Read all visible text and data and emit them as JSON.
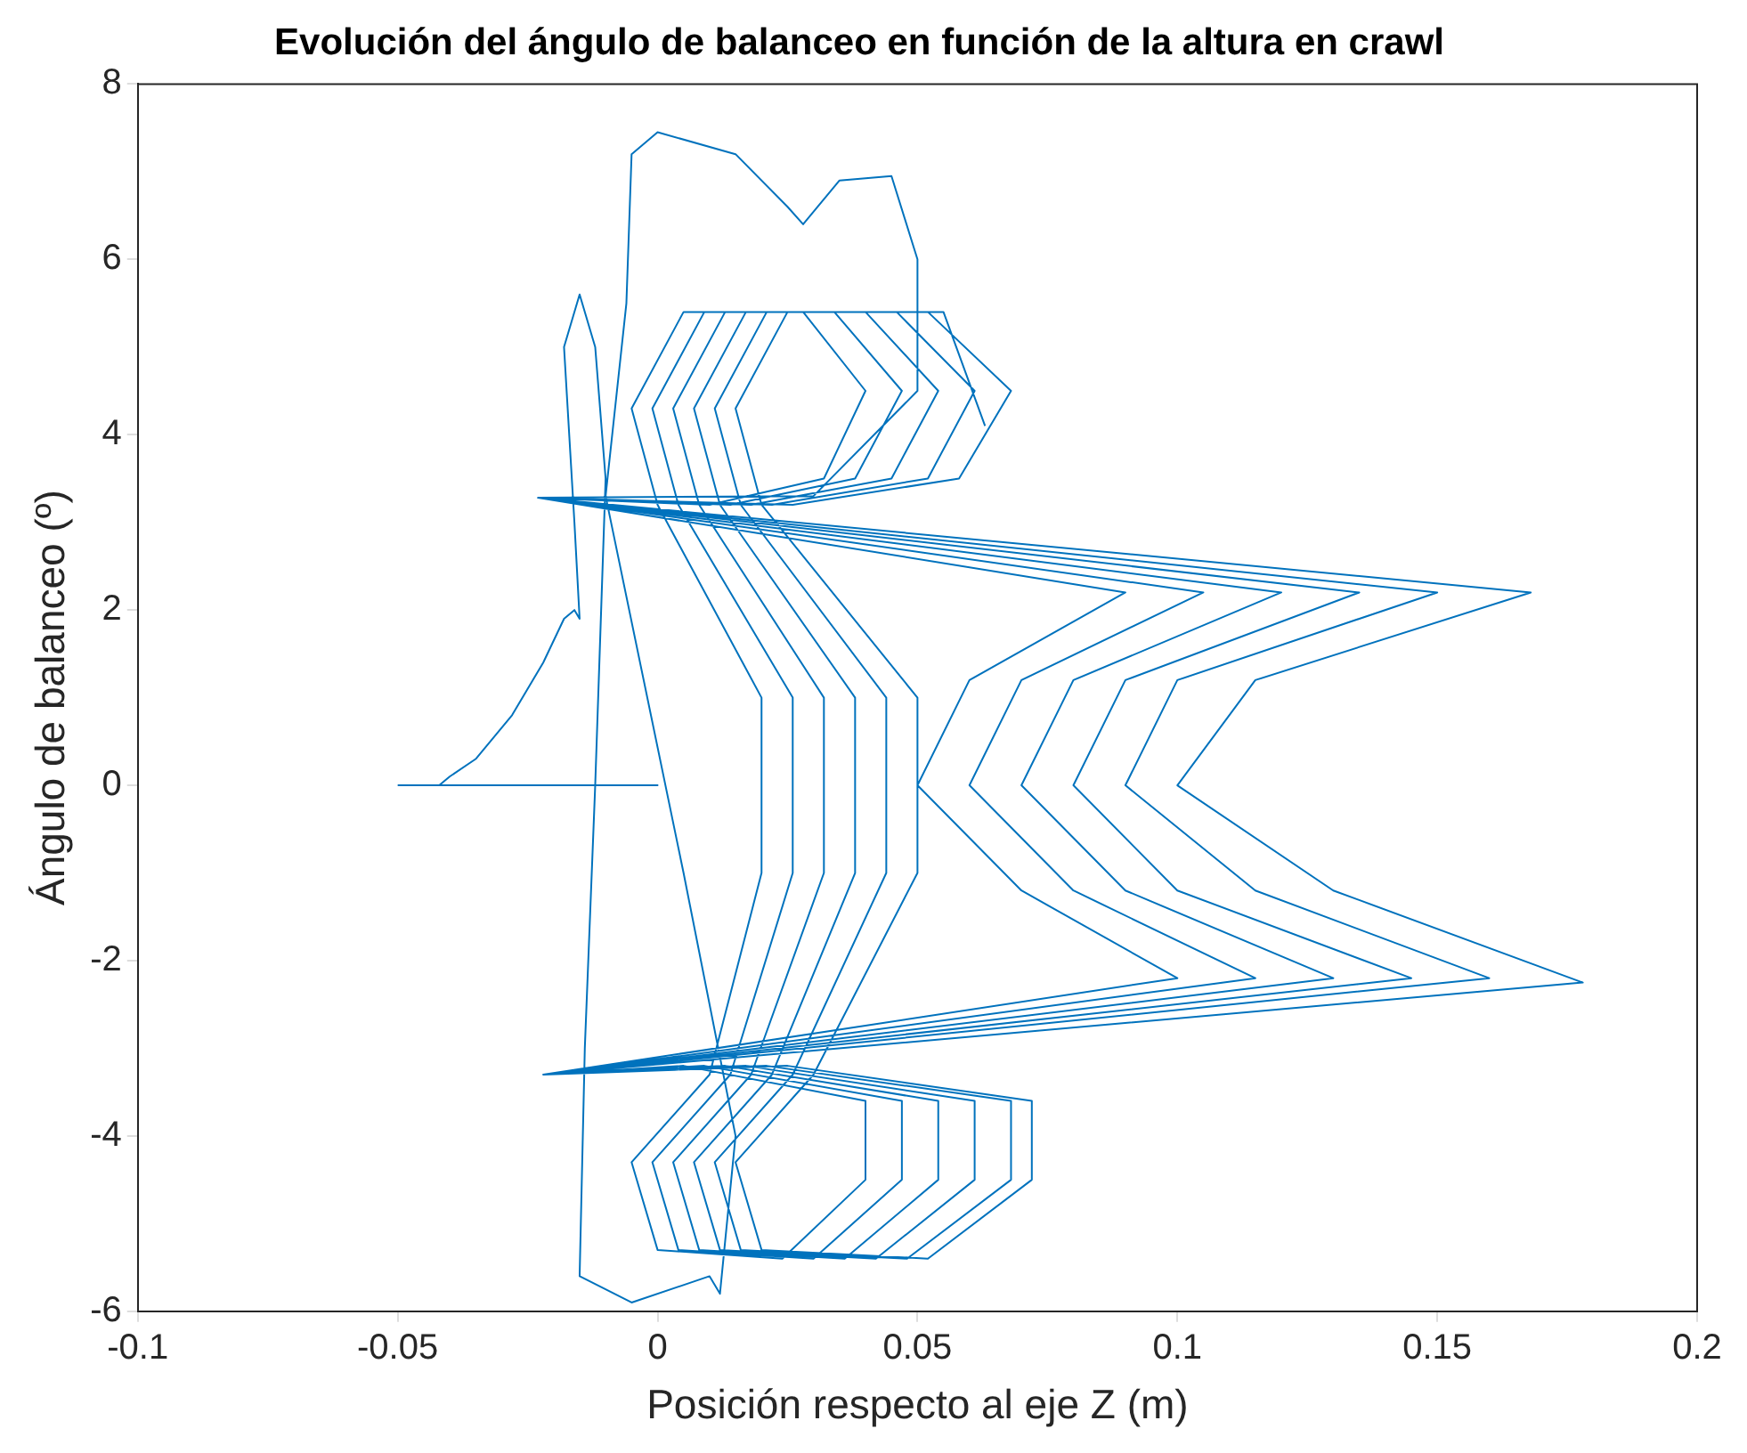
{
  "chart_data": {
    "type": "line",
    "title": "Evolución del ángulo de balanceo en función de la altura en crawl",
    "xlabel": "Posición respecto al eje Z (m)",
    "ylabel": "Ángulo de balanceo (º)",
    "xlim": [
      -0.1,
      0.2
    ],
    "xticks": [
      -0.1,
      -0.05,
      0,
      0.05,
      0.1,
      0.15,
      0.2
    ],
    "ylim": [
      -6,
      8
    ],
    "yticks": [
      -6,
      -4,
      -2,
      0,
      2,
      4,
      6,
      8
    ],
    "grid": false,
    "legend": false,
    "marker": "none",
    "line_style": "solid",
    "series": [
      {
        "color": "#0072bd",
        "x": [
          -0.05,
          0,
          -0.042,
          -0.04,
          -0.035,
          -0.028,
          -0.022,
          -0.018,
          -0.016,
          -0.015,
          -0.016,
          -0.018,
          -0.015,
          -0.012,
          -0.01,
          -0.012,
          -0.014,
          -0.015,
          -0.005,
          0.01,
          0.012,
          0.015,
          0.005,
          -0.01,
          -0.006,
          -0.005,
          0,
          0.015,
          0.025,
          0.028,
          0.035,
          0.045,
          0.05,
          0.05,
          0.03,
          -0.023,
          0.09,
          0.06,
          0.05,
          0.07,
          0.1,
          -0.022,
          0.005,
          0.04,
          0.04,
          0.024,
          0,
          -0.005,
          0.01,
          0.02,
          0.02,
          0,
          -0.005,
          0.005,
          0.028,
          0.04,
          0.032,
          0.01,
          -0.023,
          0.105,
          0.07,
          0.06,
          0.08,
          0.115,
          -0.022,
          0.009,
          0.047,
          0.047,
          0.03,
          0.004,
          -0.001,
          0.014,
          0.026,
          0.026,
          0.004,
          -0.001,
          0.009,
          0.034,
          0.047,
          0.038,
          0.014,
          -0.023,
          0.12,
          0.08,
          0.07,
          0.09,
          0.13,
          -0.022,
          0.013,
          0.054,
          0.054,
          0.036,
          0.008,
          0.003,
          0.018,
          0.032,
          0.032,
          0.008,
          0.003,
          0.013,
          0.04,
          0.054,
          0.045,
          0.018,
          -0.023,
          0.135,
          0.09,
          0.08,
          0.1,
          0.145,
          -0.022,
          0.017,
          0.061,
          0.061,
          0.042,
          0.012,
          0.007,
          0.022,
          0.038,
          0.038,
          0.012,
          0.007,
          0.017,
          0.046,
          0.061,
          0.052,
          0.022,
          -0.023,
          0.15,
          0.1,
          0.09,
          0.115,
          0.16,
          -0.022,
          0.021,
          0.068,
          0.068,
          0.048,
          0.016,
          0.011,
          0.026,
          0.044,
          0.044,
          0.016,
          0.011,
          0.021,
          0.052,
          0.068,
          0.058,
          0.026,
          -0.023,
          0.168,
          0.115,
          0.1,
          0.13,
          0.178,
          -0.022,
          0.025,
          0.072,
          0.072,
          0.052,
          0.02,
          0.015,
          0.03,
          0.05,
          0.05,
          0.02,
          0.015,
          0.025,
          0.055,
          0.063
        ],
        "values": [
          0,
          0,
          0,
          0.1,
          0.3,
          0.8,
          1.4,
          1.9,
          2,
          1.9,
          3,
          5,
          5.6,
          5,
          3.5,
          0,
          -3,
          -5.6,
          -5.9,
          -5.6,
          -5.8,
          -4,
          -1,
          3.3,
          5.5,
          7.2,
          7.45,
          7.2,
          6.6,
          6.4,
          6.9,
          6.95,
          6,
          4.5,
          3.3,
          3.28,
          2.2,
          1.2,
          0,
          -1.2,
          -2.2,
          -3.3,
          -3.2,
          -3.6,
          -4.5,
          -5.4,
          -5.3,
          -4.3,
          -3.3,
          -1,
          1,
          3.2,
          4.3,
          5.4,
          5.4,
          4.5,
          3.5,
          3.2,
          3.28,
          2.2,
          1.2,
          0,
          -1.2,
          -2.2,
          -3.3,
          -3.2,
          -3.6,
          -4.5,
          -5.4,
          -5.3,
          -4.3,
          -3.3,
          -1,
          1,
          3.2,
          4.3,
          5.4,
          5.4,
          4.5,
          3.5,
          3.2,
          3.28,
          2.2,
          1.2,
          0,
          -1.2,
          -2.2,
          -3.3,
          -3.2,
          -3.6,
          -4.5,
          -5.4,
          -5.3,
          -4.3,
          -3.3,
          -1,
          1,
          3.2,
          4.3,
          5.4,
          5.4,
          4.5,
          3.5,
          3.2,
          3.28,
          2.2,
          1.2,
          0,
          -1.2,
          -2.2,
          -3.3,
          -3.2,
          -3.6,
          -4.5,
          -5.4,
          -5.3,
          -4.3,
          -3.3,
          -1,
          1,
          3.2,
          4.3,
          5.4,
          5.4,
          4.5,
          3.5,
          3.2,
          3.28,
          2.2,
          1.2,
          0,
          -1.2,
          -2.2,
          -3.3,
          -3.2,
          -3.6,
          -4.5,
          -5.4,
          -5.3,
          -4.3,
          -3.3,
          -1,
          1,
          3.2,
          4.3,
          5.4,
          5.4,
          4.5,
          3.5,
          3.2,
          3.28,
          2.2,
          1.2,
          0,
          -1.2,
          -2.25,
          -3.3,
          -3.2,
          -3.6,
          -4.5,
          -5.4,
          -5.3,
          -4.3,
          -3.3,
          -1,
          1,
          3.2,
          4.3,
          5.4,
          5.4,
          4.1
        ]
      }
    ]
  }
}
